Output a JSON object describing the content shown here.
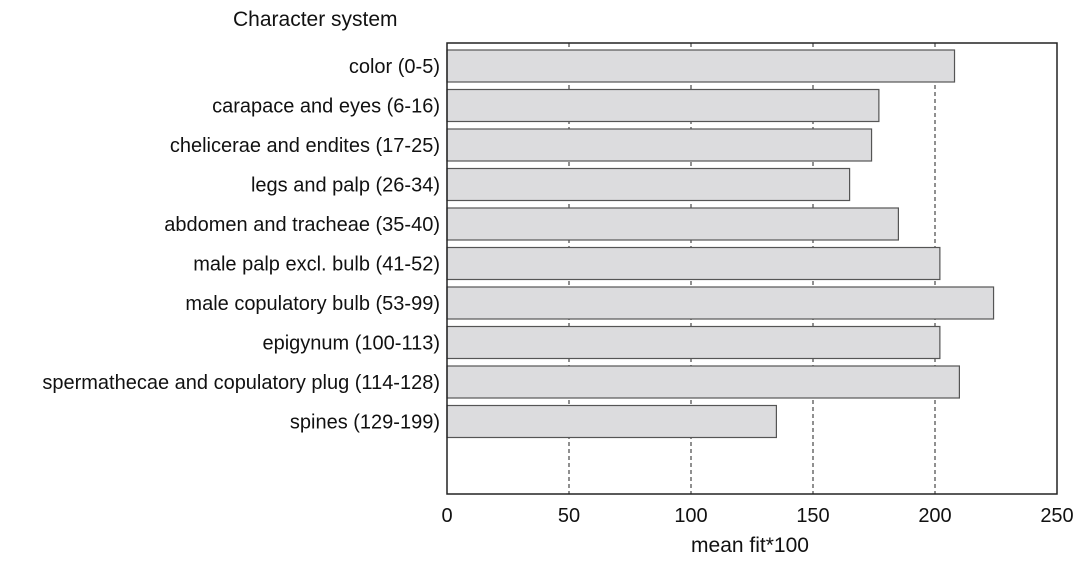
{
  "chart_data": {
    "type": "bar",
    "orientation": "horizontal",
    "title": "Character system",
    "xlabel": "mean fit*100",
    "ylabel": "",
    "categories": [
      "color (0-5)",
      "carapace and eyes (6-16)",
      "chelicerae and endites (17-25)",
      "legs and palp (26-34)",
      "abdomen and tracheae (35-40)",
      "male palp excl. bulb (41-52)",
      "male copulatory bulb (53-99)",
      "epigynum (100-113)",
      "spermathecae and copulatory plug (114-128)",
      "spines (129-199)"
    ],
    "values": [
      208,
      177,
      174,
      165,
      185,
      202,
      224,
      202,
      210,
      135
    ],
    "xlim": [
      0,
      250
    ],
    "xticks": [
      0,
      50,
      100,
      150,
      200,
      250
    ],
    "grid": "vertical dashed",
    "legend": "none",
    "bar_color": "#dcdcde"
  }
}
